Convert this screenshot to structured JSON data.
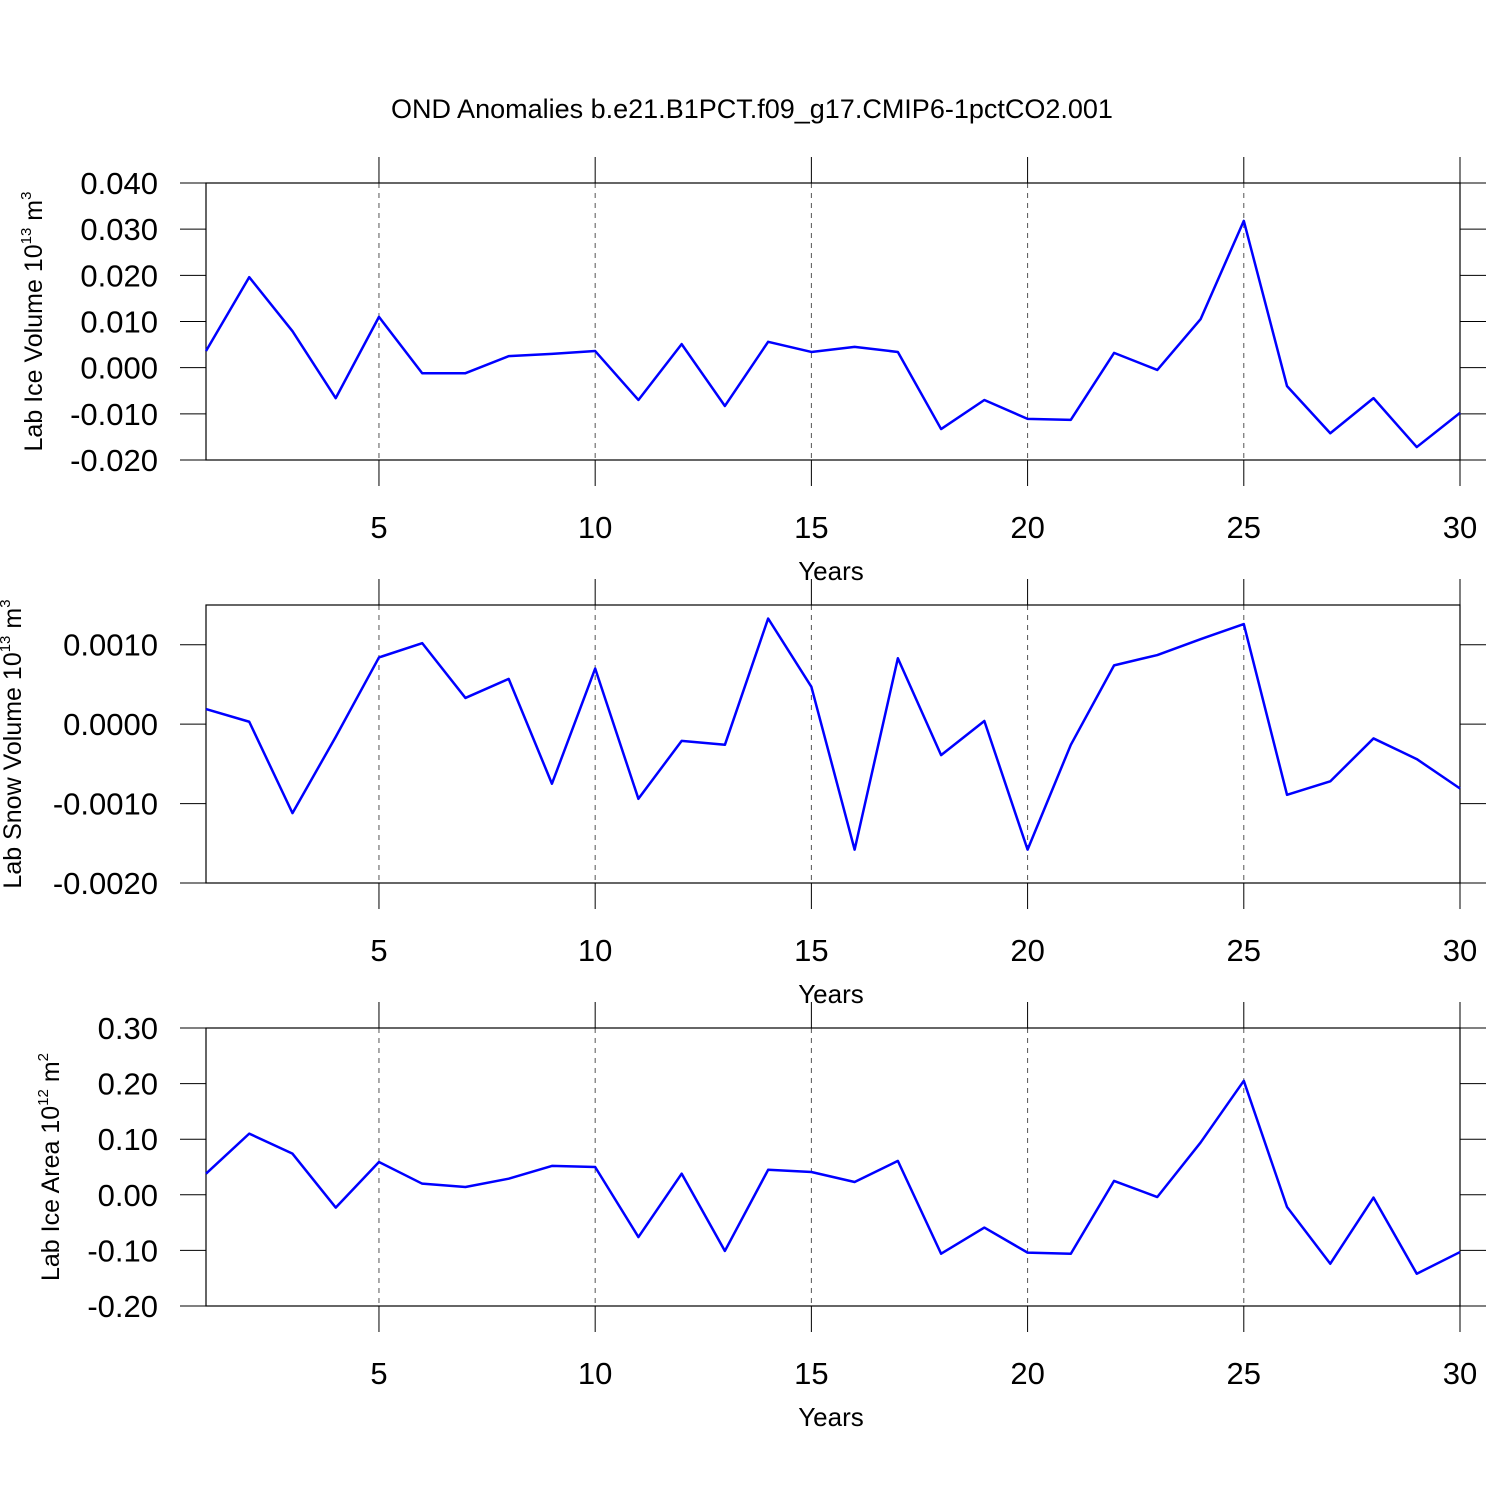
{
  "title": "OND Anomalies b.e21.B1PCT.f09_g17.CMIP6-1pctCO2.001",
  "chart_data": [
    {
      "type": "line",
      "ylabel": [
        "Lab Ice Volume 10",
        "13",
        "m",
        "3"
      ],
      "xlabel": "Years",
      "x": [
        1,
        2,
        3,
        4,
        5,
        6,
        7,
        8,
        9,
        10,
        11,
        12,
        13,
        14,
        15,
        16,
        17,
        18,
        19,
        20,
        21,
        22,
        23,
        24,
        25,
        26,
        27,
        28,
        29,
        30
      ],
      "xlim": [
        1,
        30
      ],
      "xticks": [
        5,
        10,
        15,
        20,
        25,
        30
      ],
      "grid": "x",
      "ylim": [
        -0.02,
        0.04
      ],
      "yticks": [
        {
          "value": -0.02,
          "label": "-0.020"
        },
        {
          "value": -0.01,
          "label": "-0.010"
        },
        {
          "value": 0,
          "label": "0.000"
        },
        {
          "value": 0.01,
          "label": "0.010"
        },
        {
          "value": 0.02,
          "label": "0.020"
        },
        {
          "value": 0.03,
          "label": "0.030"
        },
        {
          "value": 0.04,
          "label": "0.040"
        }
      ],
      "series": [
        {
          "color": "#0000ff",
          "values": [
            0.0036,
            0.0196,
            0.0079,
            -0.0066,
            0.011,
            -0.0012,
            -0.0012,
            0.0025,
            0.003,
            0.0036,
            -0.007,
            0.0051,
            -0.0083,
            0.0056,
            0.0034,
            0.0045,
            0.0034,
            -0.0133,
            -0.007,
            -0.0111,
            -0.0113,
            0.0032,
            -0.0005,
            0.0105,
            0.0318,
            -0.004,
            -0.0142,
            -0.0066,
            -0.0172,
            -0.0098
          ]
        }
      ]
    },
    {
      "type": "line",
      "ylabel": [
        "Lab Snow Volume 10",
        "13",
        "m",
        "3"
      ],
      "xlabel": "Years",
      "x": [
        1,
        2,
        3,
        4,
        5,
        6,
        7,
        8,
        9,
        10,
        11,
        12,
        13,
        14,
        15,
        16,
        17,
        18,
        19,
        20,
        21,
        22,
        23,
        24,
        25,
        26,
        27,
        28,
        29,
        30
      ],
      "xlim": [
        1,
        30
      ],
      "xticks": [
        5,
        10,
        15,
        20,
        25,
        30
      ],
      "grid": "x",
      "ylim": [
        -0.002,
        0.0015
      ],
      "yticks": [
        {
          "value": -0.002,
          "label": "-0.0020"
        },
        {
          "value": -0.001,
          "label": "-0.0010"
        },
        {
          "value": 0,
          "label": "0.0000"
        },
        {
          "value": 0.001,
          "label": "0.0010"
        }
      ],
      "series": [
        {
          "color": "#0000ff",
          "values": [
            0.00019,
            3e-05,
            -0.00112,
            -0.00016,
            0.00084,
            0.00102,
            0.00033,
            0.00057,
            -0.00075,
            0.0007,
            -0.00094,
            -0.00021,
            -0.00026,
            0.00133,
            0.00047,
            -0.00158,
            0.00083,
            -0.00039,
            4e-05,
            -0.00158,
            -0.00026,
            0.00074,
            0.00087,
            0.00107,
            0.00126,
            -0.00089,
            -0.00072,
            -0.00018,
            -0.00044,
            -0.00081
          ]
        }
      ]
    },
    {
      "type": "line",
      "ylabel": [
        "Lab Ice Area 10",
        "12",
        "m",
        "2"
      ],
      "xlabel": "Years",
      "x": [
        1,
        2,
        3,
        4,
        5,
        6,
        7,
        8,
        9,
        10,
        11,
        12,
        13,
        14,
        15,
        16,
        17,
        18,
        19,
        20,
        21,
        22,
        23,
        24,
        25,
        26,
        27,
        28,
        29,
        30
      ],
      "xlim": [
        1,
        30
      ],
      "xticks": [
        5,
        10,
        15,
        20,
        25,
        30
      ],
      "grid": "x",
      "ylim": [
        -0.2,
        0.3
      ],
      "yticks": [
        {
          "value": -0.2,
          "label": "-0.20"
        },
        {
          "value": -0.1,
          "label": "-0.10"
        },
        {
          "value": 0,
          "label": "0.00"
        },
        {
          "value": 0.1,
          "label": "0.10"
        },
        {
          "value": 0.2,
          "label": "0.20"
        },
        {
          "value": 0.3,
          "label": "0.30"
        }
      ],
      "series": [
        {
          "color": "#0000ff",
          "values": [
            0.038,
            0.11,
            0.074,
            -0.023,
            0.059,
            0.02,
            0.014,
            0.029,
            0.052,
            0.05,
            -0.076,
            0.038,
            -0.101,
            0.045,
            0.041,
            0.023,
            0.061,
            -0.106,
            -0.059,
            -0.104,
            -0.106,
            0.025,
            -0.004,
            0.094,
            0.205,
            -0.022,
            -0.124,
            -0.005,
            -0.142,
            -0.103
          ]
        }
      ]
    }
  ]
}
